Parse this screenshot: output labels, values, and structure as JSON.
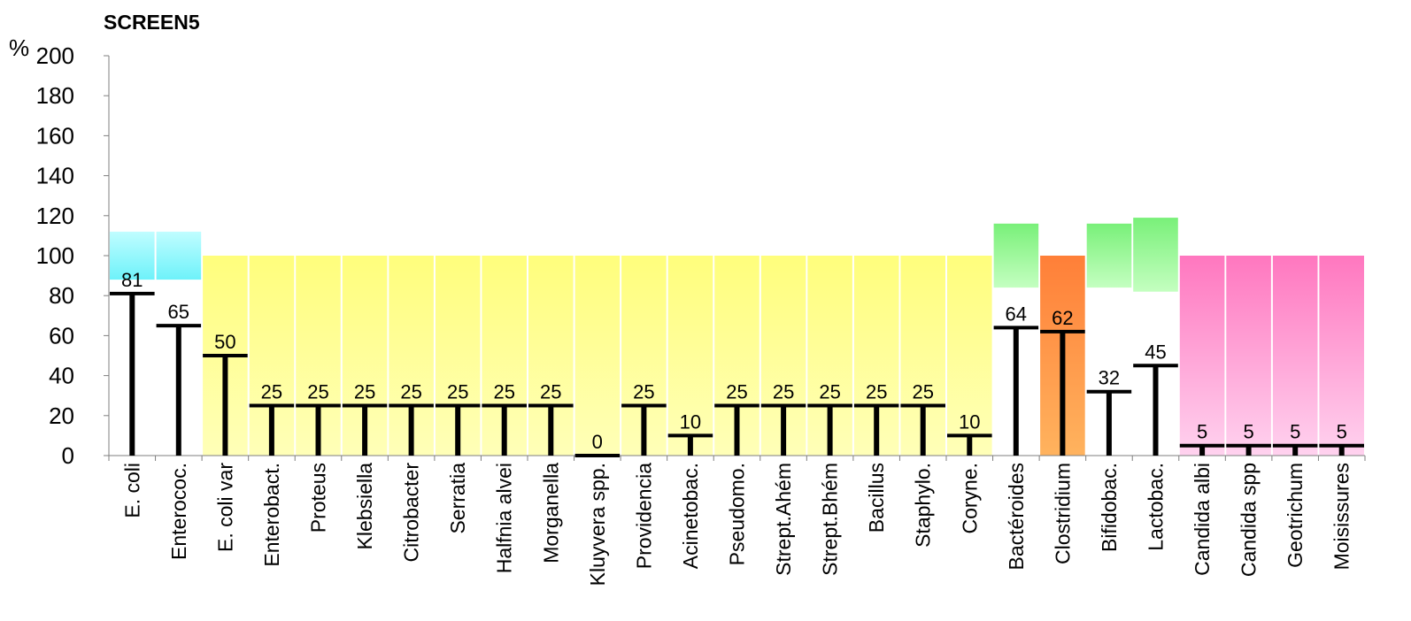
{
  "chart_data": {
    "type": "bar",
    "title": "SCREEN5",
    "ylabel": "%",
    "ylim": [
      0,
      200
    ],
    "yticks": [
      0,
      20,
      40,
      60,
      80,
      100,
      120,
      140,
      160,
      180,
      200
    ],
    "grid": false,
    "legend": "none",
    "categories": [
      "E. coli",
      "Enterococ.",
      "E. coli var",
      "Enterobact.",
      "Proteus",
      "Klebsiella",
      "Citrobacter",
      "Serratia",
      "Halfnia alvei",
      "Morganella",
      "Kluyvera spp.",
      "Providencia",
      "Acinetobac.",
      "Pseudomo.",
      "Strept.Ahém",
      "Strept.Bhém",
      "Bacillus",
      "Staphylo.",
      "Coryne.",
      "Bactéroides",
      "Clostridium",
      "Bifidobac.",
      "Lactobac.",
      "Candida albi",
      "Candida spp",
      "Geotrichum",
      "Moisissures"
    ],
    "values": [
      81,
      65,
      50,
      25,
      25,
      25,
      25,
      25,
      25,
      25,
      0,
      25,
      10,
      25,
      25,
      25,
      25,
      25,
      10,
      64,
      62,
      32,
      45,
      5,
      5,
      5,
      5
    ],
    "value_labels": [
      "81",
      "65",
      "50",
      "25",
      "25",
      "25",
      "25",
      "25",
      "25",
      "25",
      "0",
      "25",
      "10",
      "25",
      "25",
      "25",
      "25",
      "25",
      "10",
      "64",
      "62",
      "32",
      "45",
      "5",
      "5",
      "5",
      "5"
    ],
    "reference_ranges": [
      {
        "low": 88,
        "high": 112,
        "color": "cyan"
      },
      {
        "low": 88,
        "high": 112,
        "color": "cyan"
      },
      {
        "low": 0,
        "high": 100,
        "color": "yellow"
      },
      {
        "low": 0,
        "high": 100,
        "color": "yellow"
      },
      {
        "low": 0,
        "high": 100,
        "color": "yellow"
      },
      {
        "low": 0,
        "high": 100,
        "color": "yellow"
      },
      {
        "low": 0,
        "high": 100,
        "color": "yellow"
      },
      {
        "low": 0,
        "high": 100,
        "color": "yellow"
      },
      {
        "low": 0,
        "high": 100,
        "color": "yellow"
      },
      {
        "low": 0,
        "high": 100,
        "color": "yellow"
      },
      {
        "low": 0,
        "high": 100,
        "color": "yellow"
      },
      {
        "low": 0,
        "high": 100,
        "color": "yellow"
      },
      {
        "low": 0,
        "high": 100,
        "color": "yellow"
      },
      {
        "low": 0,
        "high": 100,
        "color": "yellow"
      },
      {
        "low": 0,
        "high": 100,
        "color": "yellow"
      },
      {
        "low": 0,
        "high": 100,
        "color": "yellow"
      },
      {
        "low": 0,
        "high": 100,
        "color": "yellow"
      },
      {
        "low": 0,
        "high": 100,
        "color": "yellow"
      },
      {
        "low": 0,
        "high": 100,
        "color": "yellow"
      },
      {
        "low": 84,
        "high": 116,
        "color": "green"
      },
      {
        "low": 0,
        "high": 100,
        "color": "orange"
      },
      {
        "low": 84,
        "high": 116,
        "color": "green"
      },
      {
        "low": 82,
        "high": 119,
        "color": "green"
      },
      {
        "low": 0,
        "high": 100,
        "color": "pink"
      },
      {
        "low": 0,
        "high": 100,
        "color": "pink"
      },
      {
        "low": 0,
        "high": 100,
        "color": "pink"
      },
      {
        "low": 0,
        "high": 100,
        "color": "pink"
      }
    ],
    "colors": {
      "cyan": [
        "#c0fdff",
        "#6ef2fa"
      ],
      "yellow": [
        "#fffe7c",
        "#ffffb8"
      ],
      "green": [
        "#79f079",
        "#c4ffc0"
      ],
      "orange": [
        "#ff7f38",
        "#ffb35e"
      ],
      "pink": [
        "#ff77bf",
        "#ffd2ef"
      ],
      "marker": "#000000",
      "axis": "#7f7f7f"
    }
  }
}
